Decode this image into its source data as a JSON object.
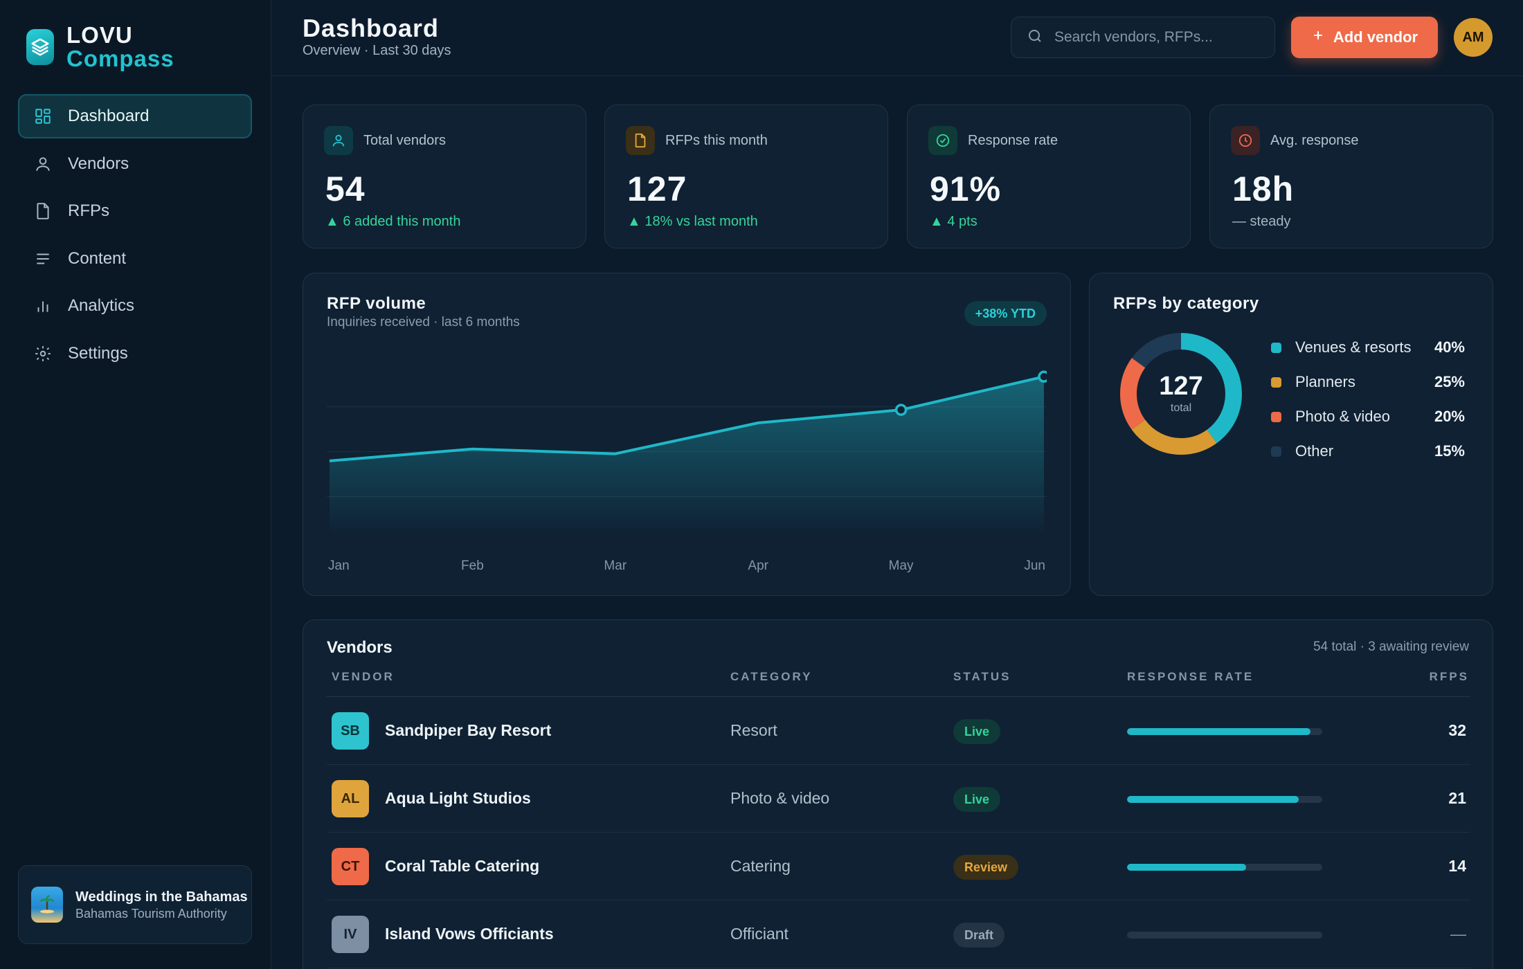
{
  "brand": {
    "line1": "LOVU",
    "line2": "Compass",
    "accent": "#22c3cf"
  },
  "nav": [
    {
      "label": "Dashboard",
      "icon": "grid-icon",
      "active": true
    },
    {
      "label": "Vendors",
      "icon": "user-icon"
    },
    {
      "label": "RFPs",
      "icon": "document-icon"
    },
    {
      "label": "Content",
      "icon": "lines-icon"
    },
    {
      "label": "Analytics",
      "icon": "bar-chart-icon"
    },
    {
      "label": "Settings",
      "icon": "gear-icon"
    }
  ],
  "org": {
    "title": "Weddings in the Bahamas",
    "subtitle": "Bahamas Tourism Authority"
  },
  "header": {
    "title": "Dashboard",
    "subtitle": "Overview · Last 30 days",
    "search_placeholder": "Search vendors, RFPs...",
    "add_label": "Add vendor",
    "avatar_initials": "AM"
  },
  "kpis": [
    {
      "label": "Total vendors",
      "value": "54",
      "delta": "▲ 6 added this month",
      "icon": "user-icon",
      "color": "#22c3cf"
    },
    {
      "label": "RFPs this month",
      "value": "127",
      "delta": "▲ 18% vs last month",
      "icon": "document-icon",
      "color": "#e5a83a"
    },
    {
      "label": "Response rate",
      "value": "91%",
      "delta": "▲ 4 pts",
      "icon": "check-circle-icon",
      "color": "#35d49a"
    },
    {
      "label": "Avg. response",
      "value": "18h",
      "delta": "— steady",
      "icon": "clock-icon",
      "color": "#ef6a48"
    }
  ],
  "chart_data": [
    {
      "type": "area",
      "title": "RFP volume",
      "subtitle": "Inquiries received · last 6 months",
      "badge": "+38% YTD",
      "categories": [
        "Jan",
        "Feb",
        "Mar",
        "Apr",
        "May",
        "Jun"
      ],
      "values": [
        52,
        62,
        58,
        84,
        95,
        123
      ],
      "ylim": [
        0,
        140
      ],
      "grid": true,
      "color": "#1fb8c8"
    },
    {
      "type": "pie",
      "title": "RFPs by category",
      "total": "127",
      "total_label": "total",
      "slices": [
        {
          "label": "Venues & resorts",
          "value": 40,
          "pct": "40%",
          "color": "#1fb8c8"
        },
        {
          "label": "Planners",
          "value": 25,
          "pct": "25%",
          "color": "#d99a32"
        },
        {
          "label": "Photo & video",
          "value": 20,
          "pct": "20%",
          "color": "#ef6a48"
        },
        {
          "label": "Other",
          "value": 15,
          "pct": "15%",
          "color": "#1e3a55"
        }
      ]
    }
  ],
  "vendors": {
    "title": "Vendors",
    "meta": "54 total · 3 awaiting review",
    "columns": [
      "VENDOR",
      "CATEGORY",
      "STATUS",
      "RESPONSE RATE",
      "RFPS"
    ],
    "rows": [
      {
        "initials": "SB",
        "name": "Sandpiper Bay Resort",
        "category": "Resort",
        "status": "Live",
        "status_type": "live",
        "rate": 0.94,
        "rfps": "32",
        "color": "#2ec4cf"
      },
      {
        "initials": "AL",
        "name": "Aqua Light Studios",
        "category": "Photo & video",
        "status": "Live",
        "status_type": "live",
        "rate": 0.88,
        "rfps": "21",
        "color": "#e0a43c"
      },
      {
        "initials": "CT",
        "name": "Coral Table Catering",
        "category": "Catering",
        "status": "Review",
        "status_type": "review",
        "rate": 0.61,
        "rfps": "14",
        "color": "#ef6a48"
      },
      {
        "initials": "IV",
        "name": "Island Vows Officiants",
        "category": "Officiant",
        "status": "Draft",
        "status_type": "draft",
        "rate": 0,
        "rfps": "—",
        "color": "#7d8fa3"
      }
    ]
  }
}
